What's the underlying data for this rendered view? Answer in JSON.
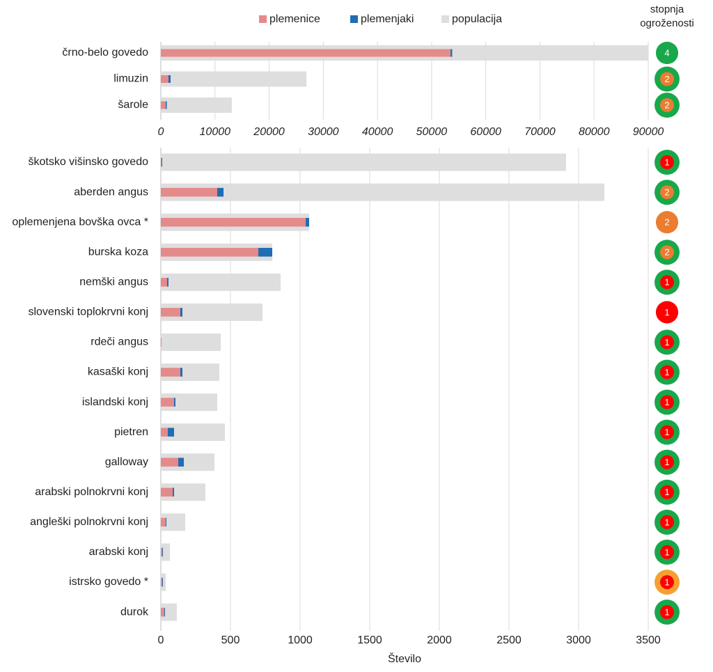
{
  "chart_data": [
    {
      "type": "bar",
      "categories": [
        "črno-belo govedo",
        "limuzin",
        "šarole"
      ],
      "series": [
        {
          "name": "plemenice",
          "color": "#e58a8a",
          "values": [
            53500,
            1400,
            900
          ]
        },
        {
          "name": "plemenjaki",
          "color": "#1f6db3",
          "values": [
            300,
            400,
            200
          ]
        },
        {
          "name": "populacija",
          "color": "#dedede",
          "values": [
            90000,
            26900,
            13100
          ]
        }
      ],
      "xlim": [
        0,
        90000
      ],
      "xticks": [
        0,
        10000,
        20000,
        30000,
        40000,
        50000,
        60000,
        70000,
        80000,
        90000
      ],
      "grid": true,
      "status_title": "stopnja ogroženosti",
      "status": [
        4,
        2,
        2
      ],
      "status_fill": [
        "#18a84b",
        "#ea7d30",
        "#ea7d30"
      ],
      "status_ring": [
        "#18a84b",
        "#18a84b",
        "#18a84b"
      ]
    },
    {
      "type": "bar",
      "categories": [
        "škotsko višinsko govedo",
        "aberden angus",
        "oplemenjena bovška ovca *",
        "burska koza",
        "nemški angus",
        "slovenski toplokrvni konj",
        "rdeči angus",
        "kasaški konj",
        "islandski konj",
        "pietren",
        "galloway",
        "arabski polnokrvni konj",
        "angleški polnokrvni konj",
        "arabski konj",
        "istrsko govedo *",
        "durok"
      ],
      "series": [
        {
          "color": "#e58a8a",
          "values": [
            5,
            405,
            1040,
            700,
            45,
            140,
            5,
            140,
            95,
            50,
            125,
            85,
            35,
            10,
            10,
            25
          ]
        },
        {
          "color": "#1f6db3",
          "values": [
            5,
            45,
            25,
            100,
            10,
            15,
            0,
            15,
            10,
            45,
            40,
            10,
            5,
            5,
            5,
            5
          ]
        },
        {
          "color": "#dedede",
          "values": [
            2910,
            3185,
            1065,
            800,
            860,
            730,
            430,
            420,
            405,
            460,
            385,
            320,
            175,
            65,
            35,
            115
          ]
        }
      ],
      "xlim": [
        0,
        3500
      ],
      "xticks": [
        0,
        500,
        1000,
        1500,
        2000,
        2500,
        3000,
        3500
      ],
      "grid": true,
      "xlabel": "Število",
      "status": [
        1,
        2,
        2,
        2,
        1,
        1,
        1,
        1,
        1,
        1,
        1,
        1,
        1,
        1,
        1,
        1
      ],
      "status_fill": [
        "#ff0000",
        "#ea7d30",
        "#ea7d30",
        "#ea7d30",
        "#ff0000",
        "#ff0000",
        "#ff0000",
        "#ff0000",
        "#ff0000",
        "#ff0000",
        "#ff0000",
        "#ff0000",
        "#ff0000",
        "#ff0000",
        "#ff0000",
        "#ff0000"
      ],
      "status_ring": [
        "#18a84b",
        "#18a84b",
        "#ea7d30",
        "#18a84b",
        "#18a84b",
        "#ff0000",
        "#18a84b",
        "#18a84b",
        "#18a84b",
        "#18a84b",
        "#18a84b",
        "#18a84b",
        "#18a84b",
        "#18a84b",
        "#f5a032",
        "#18a84b"
      ]
    }
  ]
}
